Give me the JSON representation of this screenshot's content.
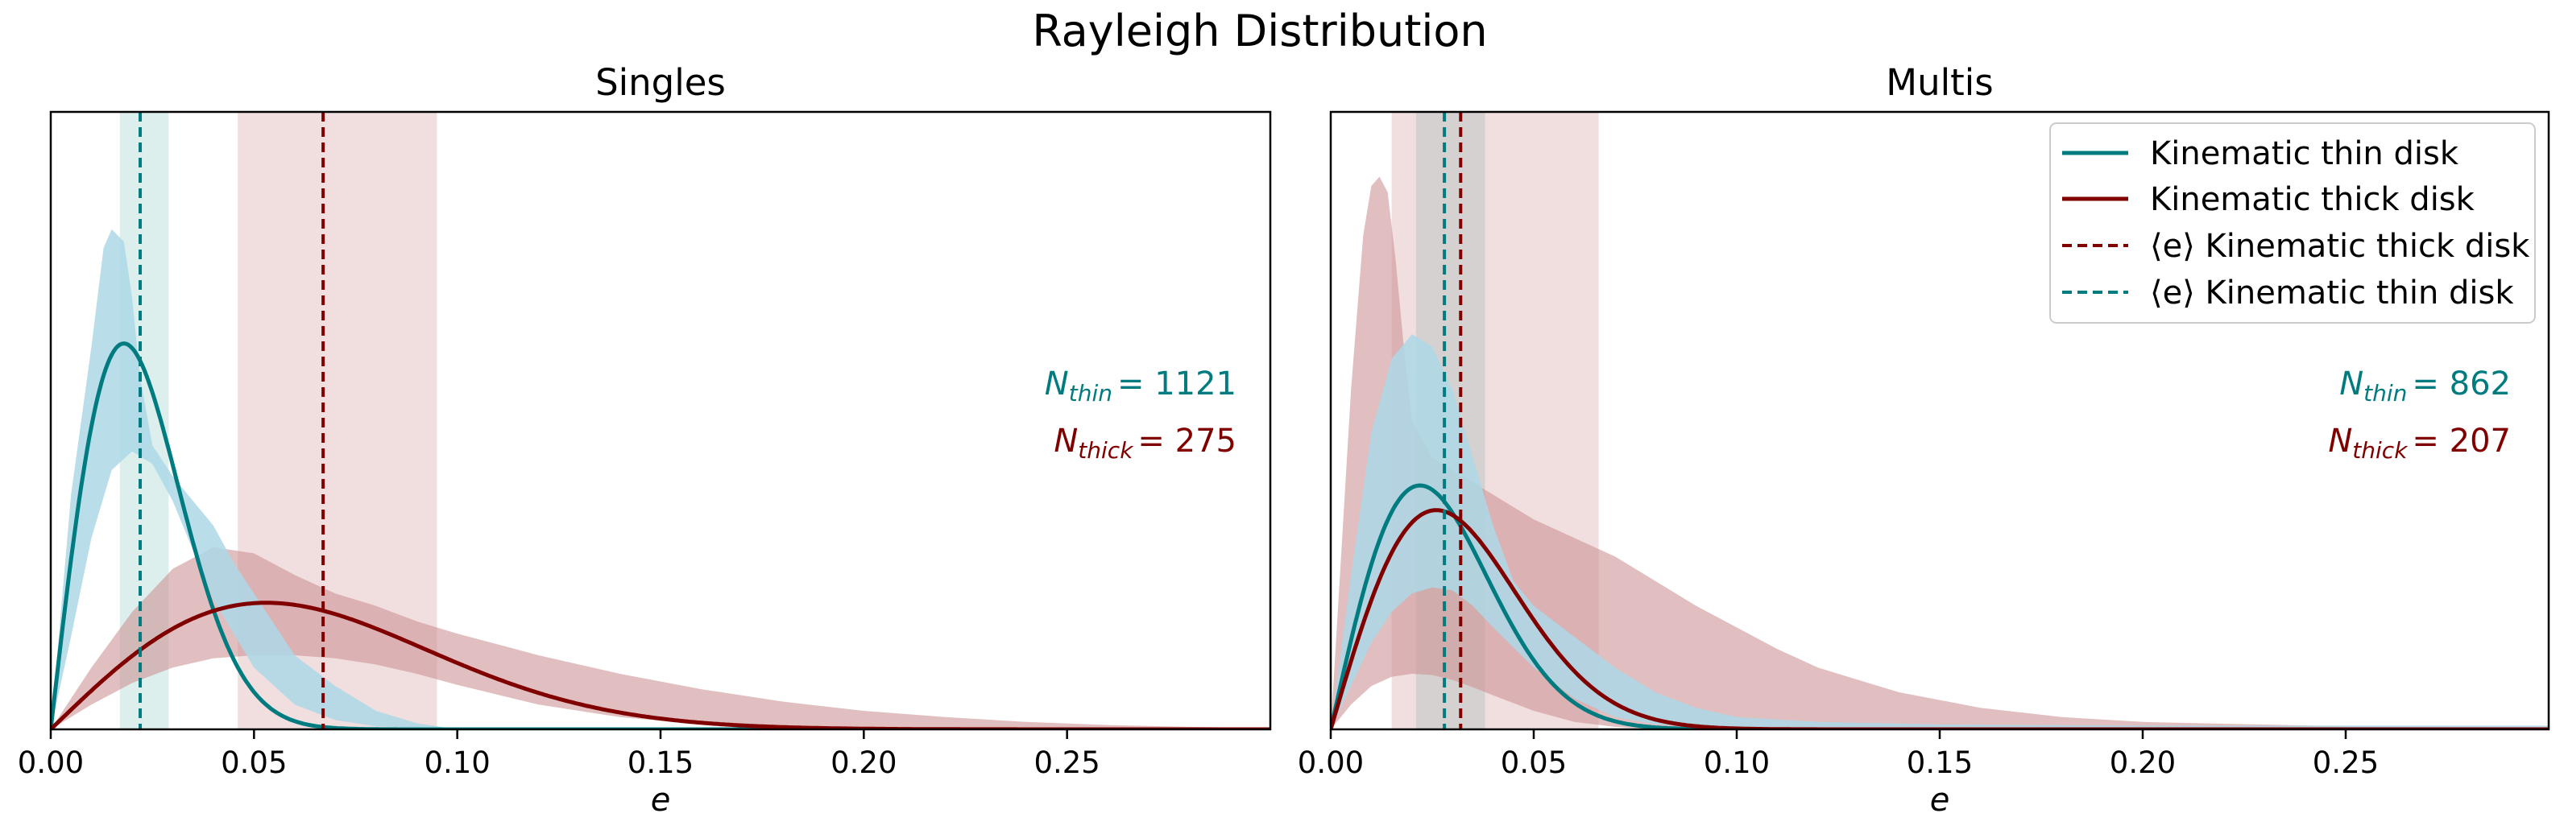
{
  "figure_title": "Rayleigh Distribution",
  "colors": {
    "thin": "#007b7f",
    "thick": "#800000",
    "thin_band": "#add8e6",
    "thick_band": "#cd9294",
    "thin_mean_band": "#b2dcd8",
    "thick_mean_band": "#e0b8bb",
    "multis_overlap_band": "#c8c8c8"
  },
  "legend": {
    "items": [
      {
        "label": "Kinematic thin disk",
        "style": "solid",
        "color_key": "thin"
      },
      {
        "label": "Kinematic thick disk",
        "style": "solid",
        "color_key": "thick"
      },
      {
        "label": "⟨e⟩ Kinematic thick disk",
        "style": "dashed",
        "color_key": "thick"
      },
      {
        "label": "⟨e⟩ Kinematic thin disk",
        "style": "dashed",
        "color_key": "thin"
      }
    ]
  },
  "chart_data": [
    {
      "type": "line",
      "title": "Singles",
      "xlabel": "e",
      "ylabel": "",
      "xlim": [
        0,
        0.3
      ],
      "ylim": [
        0,
        1.0
      ],
      "xticks": [
        0.0,
        0.05,
        0.1,
        0.15,
        0.2,
        0.25
      ],
      "xtick_labels": [
        "0.00",
        "0.05",
        "0.10",
        "0.15",
        "0.20",
        "0.25"
      ],
      "annotations": {
        "n_thin_symbol": "N",
        "n_thin_sub": "thin",
        "n_thin_value": "= 1121",
        "n_thick_symbol": "N",
        "n_thick_sub": "thick",
        "n_thick_value": "= 275"
      },
      "series": [
        {
          "name": "Kinematic thin disk",
          "sigma": 0.018,
          "peak": 0.625,
          "band_low": [
            [
              0,
              0
            ],
            [
              0.005,
              0.15
            ],
            [
              0.01,
              0.31
            ],
            [
              0.015,
              0.42
            ],
            [
              0.02,
              0.45
            ],
            [
              0.025,
              0.43
            ],
            [
              0.03,
              0.37
            ],
            [
              0.035,
              0.29
            ],
            [
              0.04,
              0.21
            ],
            [
              0.05,
              0.1
            ],
            [
              0.06,
              0.04
            ],
            [
              0.07,
              0.015
            ],
            [
              0.08,
              0.005
            ],
            [
              0.1,
              0
            ],
            [
              0.3,
              0
            ]
          ],
          "band_high": [
            [
              0,
              0
            ],
            [
              0.005,
              0.38
            ],
            [
              0.01,
              0.62
            ],
            [
              0.013,
              0.78
            ],
            [
              0.015,
              0.81
            ],
            [
              0.018,
              0.79
            ],
            [
              0.02,
              0.7
            ],
            [
              0.022,
              0.57
            ],
            [
              0.025,
              0.46
            ],
            [
              0.03,
              0.41
            ],
            [
              0.035,
              0.37
            ],
            [
              0.04,
              0.33
            ],
            [
              0.045,
              0.27
            ],
            [
              0.05,
              0.22
            ],
            [
              0.055,
              0.17
            ],
            [
              0.06,
              0.12
            ],
            [
              0.07,
              0.07
            ],
            [
              0.08,
              0.03
            ],
            [
              0.09,
              0.01
            ],
            [
              0.1,
              0
            ],
            [
              0.3,
              0
            ]
          ]
        },
        {
          "name": "Kinematic thick disk",
          "sigma": 0.053,
          "peak": 0.205,
          "band_low": [
            [
              0,
              0
            ],
            [
              0.01,
              0.04
            ],
            [
              0.02,
              0.075
            ],
            [
              0.03,
              0.1
            ],
            [
              0.04,
              0.115
            ],
            [
              0.05,
              0.12
            ],
            [
              0.06,
              0.12
            ],
            [
              0.07,
              0.115
            ],
            [
              0.08,
              0.105
            ],
            [
              0.09,
              0.09
            ],
            [
              0.1,
              0.072
            ],
            [
              0.12,
              0.04
            ],
            [
              0.14,
              0.02
            ],
            [
              0.16,
              0.008
            ],
            [
              0.18,
              0.003
            ],
            [
              0.2,
              0
            ],
            [
              0.3,
              0
            ]
          ],
          "band_high": [
            [
              0,
              0
            ],
            [
              0.01,
              0.1
            ],
            [
              0.02,
              0.19
            ],
            [
              0.03,
              0.26
            ],
            [
              0.04,
              0.295
            ],
            [
              0.05,
              0.285
            ],
            [
              0.06,
              0.25
            ],
            [
              0.07,
              0.22
            ],
            [
              0.08,
              0.2
            ],
            [
              0.09,
              0.175
            ],
            [
              0.1,
              0.155
            ],
            [
              0.12,
              0.12
            ],
            [
              0.14,
              0.09
            ],
            [
              0.16,
              0.065
            ],
            [
              0.18,
              0.045
            ],
            [
              0.2,
              0.03
            ],
            [
              0.22,
              0.02
            ],
            [
              0.24,
              0.012
            ],
            [
              0.26,
              0.007
            ],
            [
              0.28,
              0.004
            ],
            [
              0.3,
              0.002
            ]
          ]
        }
      ],
      "mean_lines": [
        {
          "name": "⟨e⟩ Kinematic thin disk",
          "x": 0.022,
          "band": [
            0.017,
            0.029
          ]
        },
        {
          "name": "⟨e⟩ Kinematic thick disk",
          "x": 0.067,
          "band": [
            0.046,
            0.095
          ]
        }
      ]
    },
    {
      "type": "line",
      "title": "Multis",
      "xlabel": "e",
      "ylabel": "",
      "xlim": [
        0,
        0.3
      ],
      "ylim": [
        0,
        1.0
      ],
      "xticks": [
        0.0,
        0.05,
        0.1,
        0.15,
        0.2,
        0.25
      ],
      "xtick_labels": [
        "0.00",
        "0.05",
        "0.10",
        "0.15",
        "0.20",
        "0.25"
      ],
      "annotations": {
        "n_thin_symbol": "N",
        "n_thin_sub": "thin",
        "n_thin_value": "= 862",
        "n_thick_symbol": "N",
        "n_thick_sub": "thick",
        "n_thick_value": "= 207"
      },
      "series": [
        {
          "name": "Kinematic thin disk",
          "sigma": 0.022,
          "peak": 0.395,
          "band_low": [
            [
              0,
              0
            ],
            [
              0.005,
              0.07
            ],
            [
              0.01,
              0.14
            ],
            [
              0.015,
              0.19
            ],
            [
              0.02,
              0.22
            ],
            [
              0.025,
              0.23
            ],
            [
              0.03,
              0.225
            ],
            [
              0.035,
              0.2
            ],
            [
              0.04,
              0.165
            ],
            [
              0.05,
              0.1
            ],
            [
              0.06,
              0.05
            ],
            [
              0.07,
              0.02
            ],
            [
              0.08,
              0.008
            ],
            [
              0.1,
              0
            ],
            [
              0.3,
              0
            ]
          ],
          "band_high": [
            [
              0,
              0
            ],
            [
              0.005,
              0.25
            ],
            [
              0.01,
              0.48
            ],
            [
              0.015,
              0.6
            ],
            [
              0.02,
              0.64
            ],
            [
              0.025,
              0.62
            ],
            [
              0.03,
              0.55
            ],
            [
              0.035,
              0.44
            ],
            [
              0.04,
              0.33
            ],
            [
              0.045,
              0.24
            ],
            [
              0.05,
              0.2
            ],
            [
              0.06,
              0.15
            ],
            [
              0.07,
              0.1
            ],
            [
              0.08,
              0.06
            ],
            [
              0.09,
              0.035
            ],
            [
              0.1,
              0.02
            ],
            [
              0.12,
              0.012
            ],
            [
              0.15,
              0.008
            ],
            [
              0.2,
              0.006
            ],
            [
              0.3,
              0.006
            ]
          ]
        },
        {
          "name": "Kinematic thick disk",
          "sigma": 0.026,
          "peak": 0.355,
          "band_low": [
            [
              0,
              0
            ],
            [
              0.005,
              0.04
            ],
            [
              0.01,
              0.07
            ],
            [
              0.015,
              0.085
            ],
            [
              0.02,
              0.09
            ],
            [
              0.025,
              0.088
            ],
            [
              0.03,
              0.08
            ],
            [
              0.035,
              0.068
            ],
            [
              0.04,
              0.055
            ],
            [
              0.05,
              0.03
            ],
            [
              0.06,
              0.012
            ],
            [
              0.07,
              0.004
            ],
            [
              0.08,
              0
            ],
            [
              0.3,
              0
            ]
          ],
          "band_high": [
            [
              0,
              0
            ],
            [
              0.005,
              0.55
            ],
            [
              0.008,
              0.8
            ],
            [
              0.01,
              0.88
            ],
            [
              0.012,
              0.895
            ],
            [
              0.014,
              0.87
            ],
            [
              0.016,
              0.76
            ],
            [
              0.018,
              0.62
            ],
            [
              0.02,
              0.5
            ],
            [
              0.025,
              0.44
            ],
            [
              0.03,
              0.42
            ],
            [
              0.035,
              0.4
            ],
            [
              0.04,
              0.38
            ],
            [
              0.05,
              0.34
            ],
            [
              0.06,
              0.31
            ],
            [
              0.07,
              0.28
            ],
            [
              0.08,
              0.24
            ],
            [
              0.09,
              0.2
            ],
            [
              0.1,
              0.165
            ],
            [
              0.11,
              0.13
            ],
            [
              0.12,
              0.1
            ],
            [
              0.14,
              0.06
            ],
            [
              0.16,
              0.035
            ],
            [
              0.18,
              0.02
            ],
            [
              0.2,
              0.012
            ],
            [
              0.25,
              0.005
            ],
            [
              0.3,
              0.003
            ]
          ]
        }
      ],
      "mean_lines": [
        {
          "name": "⟨e⟩ Kinematic thin disk",
          "x": 0.028,
          "band": [
            0.021,
            0.038
          ]
        },
        {
          "name": "⟨e⟩ Kinematic thick disk",
          "x": 0.032,
          "band": [
            0.015,
            0.066
          ]
        }
      ]
    }
  ]
}
